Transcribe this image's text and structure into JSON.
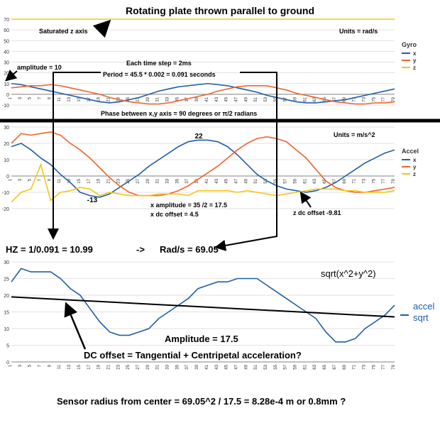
{
  "colors": {
    "x": "#1f5fa6",
    "y": "#f0642c",
    "z": "#f5c518",
    "grid": "#d9d9d9",
    "axis": "#808080",
    "annotation": "#000000"
  },
  "title": "Rotating plate thrown parallel to ground",
  "gyro": {
    "units": "Units = rad/s",
    "saturated_label": "Saturated z axis",
    "amplitude_label": "amplitude = 10",
    "time_step_label": "Each time step = 2ms",
    "period_label": "Period = 45.5 * 0.002 = 0.091 seconds",
    "phase_label": "Phase between x,y axis = 90 degrees or π/2 radians"
  },
  "accel": {
    "units": "Units = m/s^2",
    "peak_label": "22",
    "trough_label": "-13",
    "amplitude_label": "x amplitude = 35 /2 = 17.5",
    "dc_offset_label": "x dc offset = 4.5",
    "z_offset_label": "z dc offset -9.81"
  },
  "freq_label": "HZ = 1/0.091 = 10.99",
  "freq_arrow": "->",
  "rads_label": "Rad/s = 69.05",
  "sqrt": {
    "expr_label": "sqrt(x^2+y^2)",
    "amplitude_label": "Amplitude = 17.5",
    "dc_label": "DC offset = Tangential + Centripetal acceleration?"
  },
  "radius_label": "Sensor radius from center = 69.05^2 / 17.5 = 8.28e-4 m or 0.8mm ?",
  "chart_data": [
    {
      "type": "line",
      "title": "Rotating plate thrown parallel to ground",
      "ylim": [
        -10,
        70
      ],
      "yticks": [
        -10,
        0,
        10,
        20,
        30,
        40,
        50,
        60,
        70
      ],
      "x": [
        1,
        3,
        5,
        7,
        9,
        11,
        13,
        15,
        17,
        19,
        21,
        23,
        25,
        27,
        29,
        31,
        33,
        35,
        37,
        39,
        41,
        43,
        45,
        47,
        49,
        51,
        53,
        55,
        57,
        59,
        61,
        63,
        65,
        67,
        69,
        71,
        73,
        75,
        77,
        79
      ],
      "legend_title": "Gyro",
      "legend_position": "right",
      "series": [
        {
          "name": "x",
          "values": [
            10,
            9,
            7,
            5,
            3,
            1,
            -1,
            -3,
            -5,
            -7,
            -8,
            -7,
            -5,
            -3,
            0,
            3,
            5,
            7,
            8,
            9,
            10,
            9,
            8,
            6,
            4,
            2,
            -1,
            -3,
            -5,
            -7,
            -8,
            -8,
            -7,
            -6,
            -5,
            -3,
            -1,
            1,
            3,
            5
          ]
        },
        {
          "name": "y",
          "values": [
            6,
            7,
            8,
            8,
            9,
            8,
            6,
            4,
            2,
            0,
            -3,
            -5,
            -7,
            -8,
            -9,
            -9,
            -8,
            -6,
            -4,
            -2,
            0,
            3,
            5,
            7,
            8,
            8,
            8,
            6,
            4,
            1,
            -1,
            -3,
            -5,
            -7,
            -8,
            -9,
            -9,
            -8,
            -8,
            -7
          ]
        },
        {
          "name": "z",
          "values": [
            70,
            70,
            70,
            70,
            70,
            70,
            70,
            70,
            70,
            70,
            70,
            70,
            70,
            70,
            70,
            70,
            70,
            70,
            70,
            70,
            70,
            70,
            70,
            70,
            70,
            70,
            70,
            70,
            70,
            70,
            70,
            70,
            70,
            70,
            70,
            70,
            70,
            70,
            70,
            70
          ]
        }
      ]
    },
    {
      "type": "line",
      "ylim": [
        -20,
        30
      ],
      "yticks": [
        -20,
        -10,
        0,
        10,
        20,
        30
      ],
      "x": [
        1,
        3,
        5,
        7,
        9,
        11,
        13,
        15,
        17,
        19,
        21,
        23,
        25,
        27,
        29,
        31,
        33,
        35,
        37,
        39,
        41,
        43,
        45,
        47,
        49,
        51,
        53,
        55,
        57,
        59,
        61,
        63,
        65,
        67,
        69,
        71,
        73,
        75,
        77,
        79
      ],
      "legend_title": "Accel",
      "legend_position": "right",
      "series": [
        {
          "name": "x",
          "values": [
            18,
            20,
            16,
            11,
            7,
            1,
            -4,
            -10,
            -12,
            -13,
            -11,
            -7,
            -3,
            1,
            6,
            10,
            14,
            18,
            21,
            22,
            22,
            21,
            18,
            13,
            7,
            1,
            -3,
            -6,
            -8,
            -9,
            -10,
            -9,
            -7,
            -4,
            0,
            4,
            8,
            11,
            14,
            16
          ]
        },
        {
          "name": "y",
          "values": [
            20,
            26,
            25,
            26,
            27,
            25,
            20,
            16,
            11,
            5,
            -1,
            -6,
            -10,
            -12,
            -12,
            -12,
            -11,
            -9,
            -6,
            -2,
            2,
            6,
            11,
            16,
            20,
            23,
            24,
            23,
            21,
            16,
            11,
            4,
            -3,
            -7,
            -9,
            -10,
            -10,
            -9,
            -8,
            -7
          ]
        },
        {
          "name": "z",
          "values": [
            -16,
            -10,
            -8,
            7,
            -15,
            -10,
            -9,
            -7,
            -8,
            -12,
            -10,
            -11,
            -12,
            -12,
            -12,
            -11,
            -11,
            -11,
            -12,
            -9,
            -9,
            -9,
            -9,
            -10,
            -9,
            -10,
            -11,
            -12,
            -11,
            -10,
            -9,
            -8,
            -8,
            -8,
            -9,
            -9,
            -10,
            -10,
            -10,
            -9
          ]
        }
      ]
    },
    {
      "type": "line",
      "ylim": [
        0,
        30
      ],
      "yticks": [
        0,
        5,
        10,
        15,
        20,
        25,
        30
      ],
      "x": [
        1,
        3,
        5,
        7,
        9,
        11,
        13,
        15,
        17,
        19,
        21,
        23,
        25,
        27,
        29,
        31,
        33,
        35,
        37,
        39,
        41,
        43,
        45,
        47,
        49,
        51,
        53,
        55,
        57,
        59,
        61,
        63,
        65,
        67,
        69,
        71,
        73,
        75,
        77,
        79
      ],
      "legend_position": "right",
      "series": [
        {
          "name": "accel sqrt",
          "values": [
            24,
            28,
            27,
            27,
            27,
            25,
            22,
            20,
            16,
            12,
            9,
            8,
            8,
            9,
            10,
            13,
            15,
            17,
            19,
            22,
            23,
            24,
            24,
            25,
            25,
            25,
            23,
            21,
            19,
            17,
            15,
            13,
            9,
            6,
            6,
            7,
            10,
            12,
            14,
            17
          ]
        }
      ],
      "trendline": {
        "from": [
          1,
          19.5
        ],
        "to": [
          79,
          13.5
        ]
      }
    }
  ]
}
